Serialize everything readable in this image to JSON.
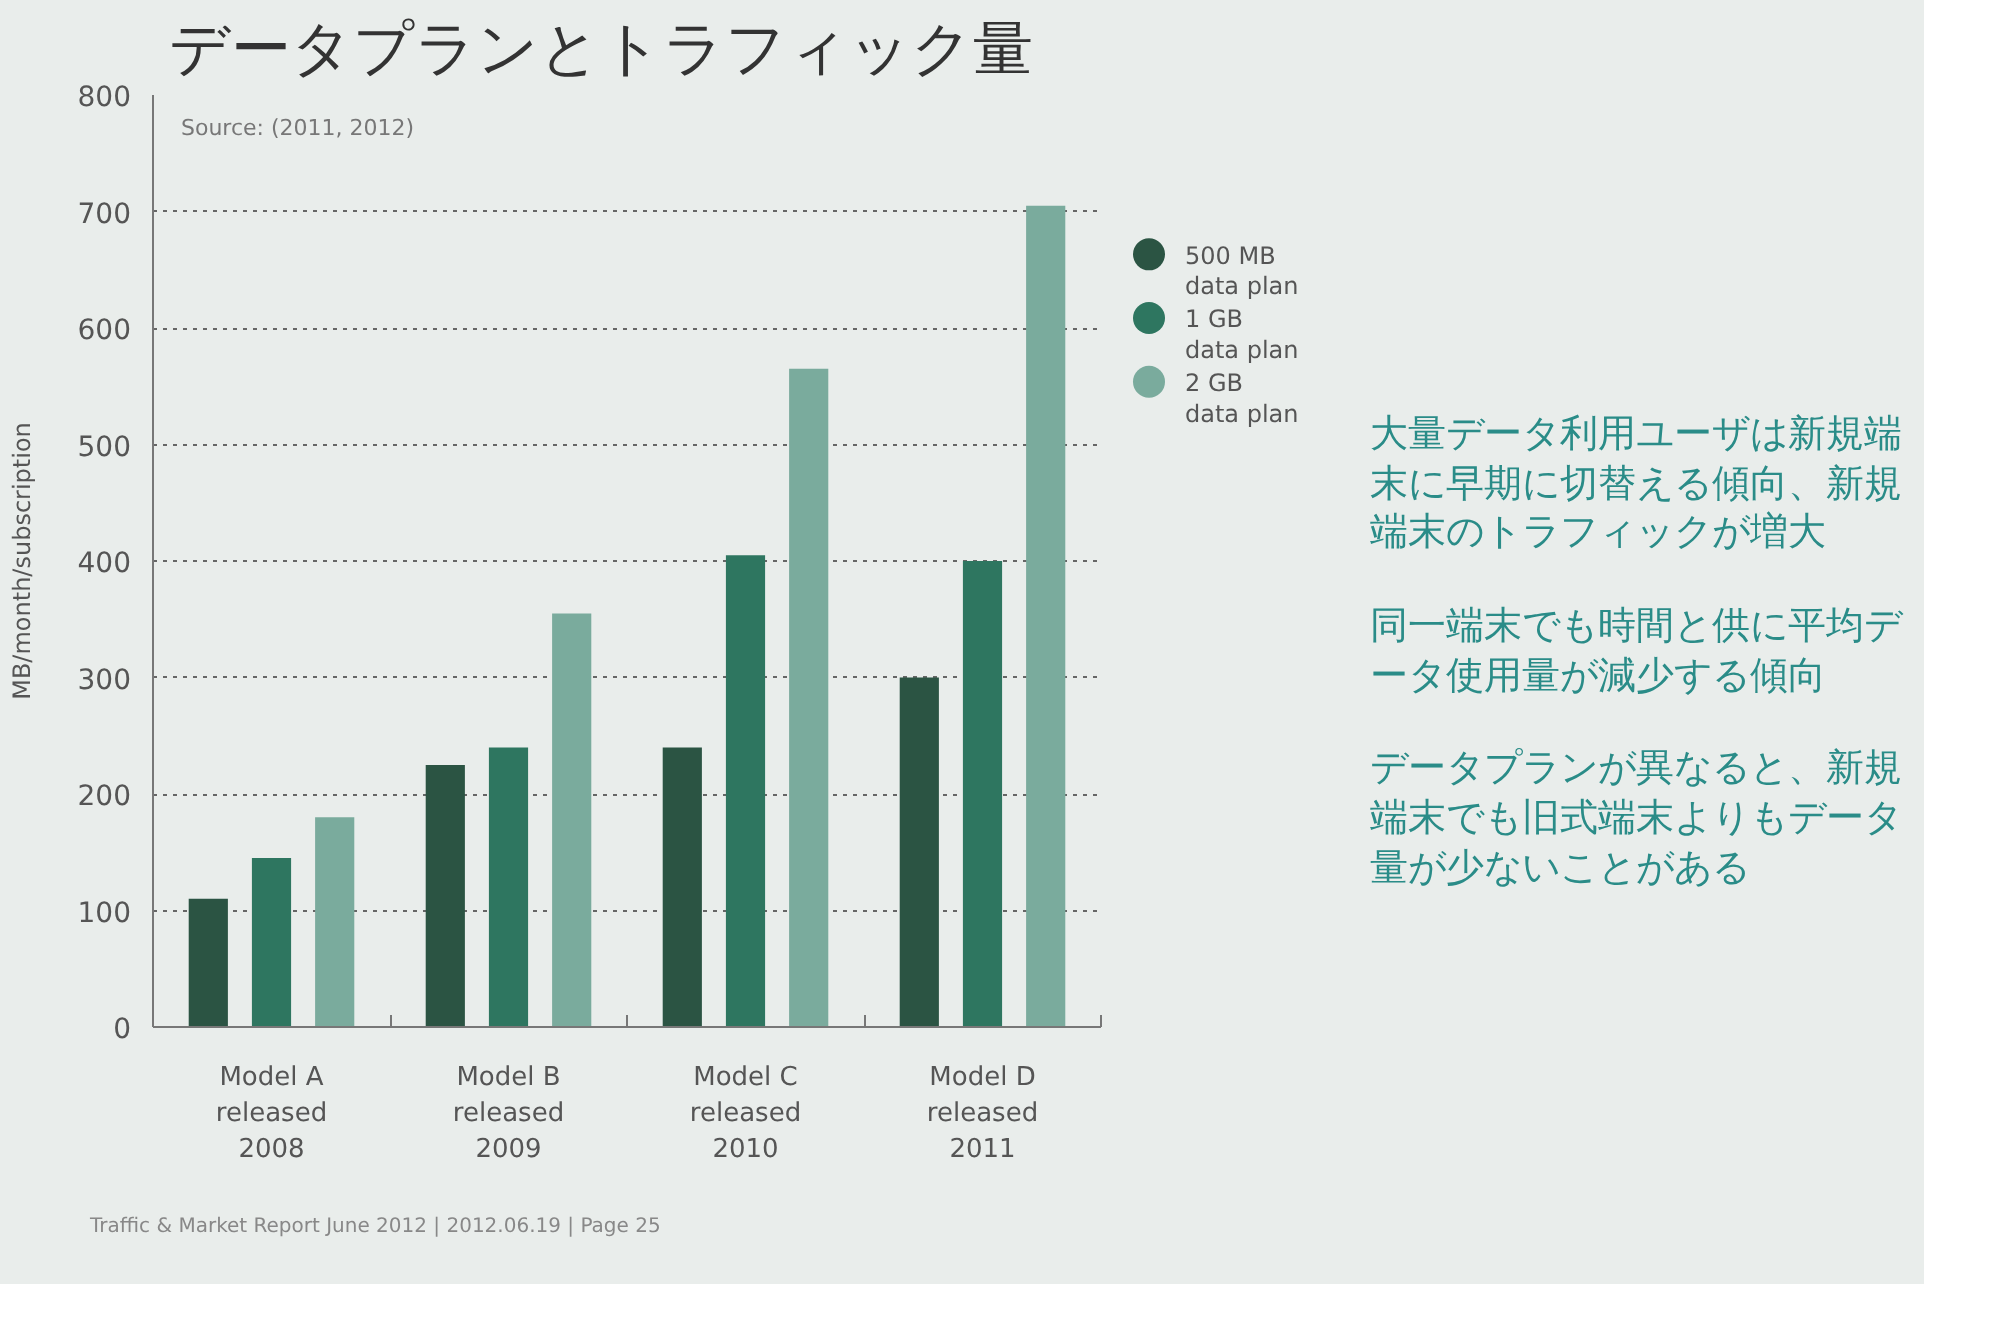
{
  "chart_data": {
    "type": "bar",
    "title": "データプランとトラフィック量",
    "ylabel": "MB/month/subscription",
    "categories": [
      "Model A released 2008",
      "Model B released 2009",
      "Model C released 2010",
      "Model D released 2011"
    ],
    "series": [
      {
        "name": "500 MB data plan",
        "color": "#2b5443",
        "values": [
          110,
          225,
          240,
          300
        ]
      },
      {
        "name": "1 GB data plan",
        "color": "#2e7660",
        "values": [
          145,
          240,
          405,
          400
        ]
      },
      {
        "name": "2 GB data plan",
        "color": "#7aab9d",
        "values": [
          180,
          355,
          565,
          705
        ]
      }
    ],
    "ylim": [
      0,
      800
    ],
    "yticks": [
      0,
      100,
      200,
      300,
      400,
      500,
      600,
      700,
      800
    ],
    "grid": "y",
    "legend": "right",
    "annotations": [
      "Source: (2011, 2012)",
      "大量データ利用ユーザは新規端末に早期に切替える傾向、新規端末のトラフィックが増大",
      "同一端末でも時間と供に平均データ使用量が減少する傾向",
      "データプランが異なると、新規端末でも旧式端末よりもデータ量が少ないことがある",
      "Traffic & Market Report June 2012 | 2012.06.19 | Page 25"
    ]
  }
}
